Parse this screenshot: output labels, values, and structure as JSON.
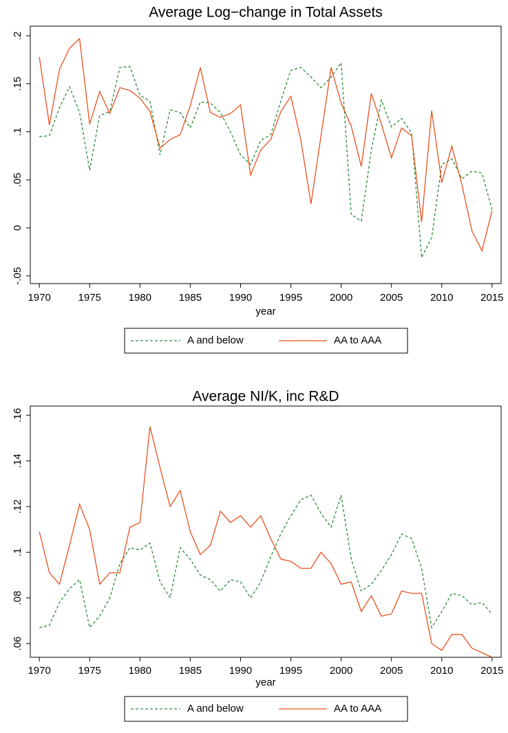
{
  "chart_data": [
    {
      "type": "line",
      "title": "Average Log−change in Total Assets",
      "x_label": "year",
      "x": [
        1970,
        1971,
        1972,
        1973,
        1974,
        1975,
        1976,
        1977,
        1978,
        1979,
        1980,
        1981,
        1982,
        1983,
        1984,
        1985,
        1986,
        1987,
        1988,
        1989,
        1990,
        1991,
        1992,
        1993,
        1994,
        1995,
        1996,
        1997,
        1998,
        1999,
        2000,
        2001,
        2002,
        2003,
        2004,
        2005,
        2006,
        2007,
        2008,
        2009,
        2010,
        2011,
        2012,
        2013,
        2014,
        2015
      ],
      "series": [
        {
          "name": "A and below",
          "color": "#2a8a3a",
          "style": "dashed",
          "values": [
            0.095,
            0.096,
            0.125,
            0.147,
            0.12,
            0.06,
            0.117,
            0.121,
            0.167,
            0.168,
            0.138,
            0.132,
            0.076,
            0.123,
            0.12,
            0.104,
            0.131,
            0.13,
            0.12,
            0.1,
            0.076,
            0.066,
            0.091,
            0.097,
            0.132,
            0.164,
            0.167,
            0.157,
            0.146,
            0.157,
            0.172,
            0.014,
            0.007,
            0.081,
            0.133,
            0.105,
            0.114,
            0.099,
            -0.031,
            -0.01,
            0.066,
            0.072,
            0.051,
            0.059,
            0.057,
            0.019
          ]
        },
        {
          "name": "AA to AAA",
          "color": "#e8501e",
          "style": "solid",
          "values": [
            0.178,
            0.107,
            0.165,
            0.187,
            0.197,
            0.108,
            0.142,
            0.119,
            0.146,
            0.143,
            0.135,
            0.121,
            0.083,
            0.092,
            0.097,
            0.127,
            0.167,
            0.12,
            0.115,
            0.119,
            0.128,
            0.055,
            0.081,
            0.092,
            0.121,
            0.137,
            0.091,
            0.025,
            0.096,
            0.167,
            0.13,
            0.106,
            0.064,
            0.14,
            0.108,
            0.073,
            0.104,
            0.096,
            0.006,
            0.122,
            0.047,
            0.085,
            0.045,
            -0.003,
            -0.024,
            0.018
          ]
        }
      ],
      "xlim": [
        1969.1,
        2015.9
      ],
      "xticks": [
        1970,
        1975,
        1980,
        1985,
        1990,
        1995,
        2000,
        2005,
        2010,
        2015
      ],
      "ylim": [
        -0.058,
        0.21
      ],
      "yticks": [
        {
          "value": -0.05,
          "label": "-.05"
        },
        0,
        {
          "value": 0.05,
          "label": ".05"
        },
        {
          "value": 0.1,
          "label": ".1"
        },
        {
          "value": 0.15,
          "label": ".15"
        },
        {
          "value": 0.2,
          "label": ".2"
        }
      ],
      "grid": false,
      "legend": "bottom"
    },
    {
      "type": "line",
      "title": "Average NI/K, inc R&D",
      "x_label": "year",
      "x": [
        1970,
        1971,
        1972,
        1973,
        1974,
        1975,
        1976,
        1977,
        1978,
        1979,
        1980,
        1981,
        1982,
        1983,
        1984,
        1985,
        1986,
        1987,
        1988,
        1989,
        1990,
        1991,
        1992,
        1993,
        1994,
        1995,
        1996,
        1997,
        1998,
        1999,
        2000,
        2001,
        2002,
        2003,
        2004,
        2005,
        2006,
        2007,
        2008,
        2009,
        2010,
        2011,
        2012,
        2013,
        2014,
        2015
      ],
      "series": [
        {
          "name": "A and below",
          "color": "#2a8a3a",
          "style": "dashed",
          "values": [
            0.067,
            0.068,
            0.078,
            0.084,
            0.088,
            0.067,
            0.072,
            0.08,
            0.095,
            0.102,
            0.101,
            0.104,
            0.087,
            0.08,
            0.102,
            0.097,
            0.09,
            0.088,
            0.083,
            0.088,
            0.087,
            0.08,
            0.087,
            0.098,
            0.108,
            0.116,
            0.123,
            0.125,
            0.117,
            0.111,
            0.125,
            0.097,
            0.083,
            0.086,
            0.092,
            0.099,
            0.108,
            0.106,
            0.093,
            0.067,
            0.074,
            0.082,
            0.081,
            0.077,
            0.078,
            0.073
          ]
        },
        {
          "name": "AA to AAA",
          "color": "#e8501e",
          "style": "solid",
          "values": [
            0.109,
            0.091,
            0.086,
            0.103,
            0.121,
            0.11,
            0.086,
            0.091,
            0.091,
            0.111,
            0.113,
            0.155,
            0.137,
            0.12,
            0.127,
            0.109,
            0.099,
            0.103,
            0.118,
            0.113,
            0.116,
            0.111,
            0.116,
            0.106,
            0.097,
            0.096,
            0.093,
            0.093,
            0.1,
            0.095,
            0.086,
            0.087,
            0.074,
            0.081,
            0.072,
            0.073,
            0.083,
            0.082,
            0.082,
            0.06,
            0.057,
            0.064,
            0.064,
            0.058,
            0.056,
            0.054
          ]
        }
      ],
      "xlim": [
        1969.1,
        2015.9
      ],
      "xticks": [
        1970,
        1975,
        1980,
        1985,
        1990,
        1995,
        2000,
        2005,
        2010,
        2015
      ],
      "ylim": [
        0.054,
        0.164
      ],
      "yticks": [
        {
          "value": 0.06,
          "label": ".06"
        },
        {
          "value": 0.08,
          "label": ".08"
        },
        {
          "value": 0.1,
          "label": ".1"
        },
        {
          "value": 0.12,
          "label": ".12"
        },
        {
          "value": 0.14,
          "label": ".14"
        },
        {
          "value": 0.16,
          "label": ".16"
        }
      ],
      "grid": false,
      "legend": "bottom"
    }
  ]
}
